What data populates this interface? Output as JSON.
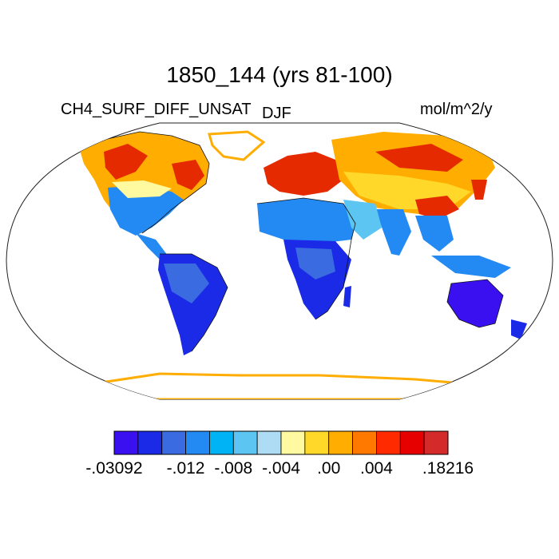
{
  "title": "1850_144 (yrs 81-100)",
  "left_label": "CH4_SURF_DIFF_UNSAT",
  "season_label": "DJF",
  "units_label": "mol/m^2/y",
  "colorbar": {
    "colors": [
      "#3b10f0",
      "#1a2ae6",
      "#3a6be0",
      "#2389f3",
      "#00b3f5",
      "#5cc5f2",
      "#aedcf5",
      "#fffaa0",
      "#ffd82a",
      "#ffad00",
      "#ff7800",
      "#ff2a00",
      "#e60000",
      "#d42a2a"
    ],
    "labels": [
      "-.03092",
      "-.012",
      "-.008",
      "-.004",
      ".00",
      ".004",
      ".18216"
    ],
    "label_boundary_index": [
      0,
      3,
      5,
      7,
      9,
      11,
      14
    ]
  },
  "map": {
    "projection": "Robinson",
    "palette_note": "",
    "land_color_regions": []
  }
}
